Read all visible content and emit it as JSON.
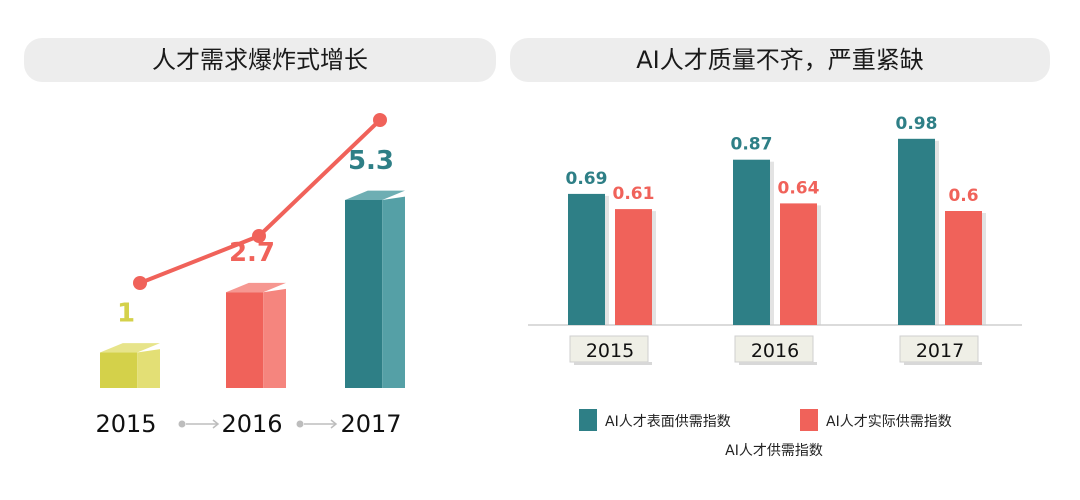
{
  "colors": {
    "teal": "#2e7f86",
    "teal_light": "#55a0a6",
    "red": "#f0625a",
    "red_light": "#f5857e",
    "yellow": "#d4d14a",
    "yellow_light": "#e3df75",
    "label_bg": "#efefe6"
  },
  "left_panel": {
    "title": "人才需求爆炸式增长"
  },
  "right_panel": {
    "title": "AI人才质量不齐，严重紧缺"
  },
  "chart_data": [
    {
      "type": "bar",
      "title": "人才需求爆炸式增长",
      "categories": [
        "2015",
        "2016",
        "2017"
      ],
      "values": [
        1,
        2.7,
        5.3
      ],
      "value_labels": [
        "1",
        "2.7",
        "5.3"
      ],
      "trend_line": true,
      "ylim": [
        0,
        5.3
      ]
    },
    {
      "type": "bar",
      "title": "AI人才质量不齐，严重紧缺",
      "categories": [
        "2015",
        "2016",
        "2017"
      ],
      "series": [
        {
          "name": "AI人才表面供需指数",
          "values": [
            0.69,
            0.87,
            0.98
          ],
          "labels": [
            "0.69",
            "0.87",
            "0.98"
          ],
          "color": "#2e7f86"
        },
        {
          "name": "AI人才实际供需指数",
          "values": [
            0.61,
            0.64,
            0.6
          ],
          "labels": [
            "0.61",
            "0.64",
            "0.6"
          ],
          "color": "#f0625a"
        }
      ],
      "xlabel": "AI人才供需指数",
      "ylim": [
        0,
        1
      ]
    }
  ]
}
